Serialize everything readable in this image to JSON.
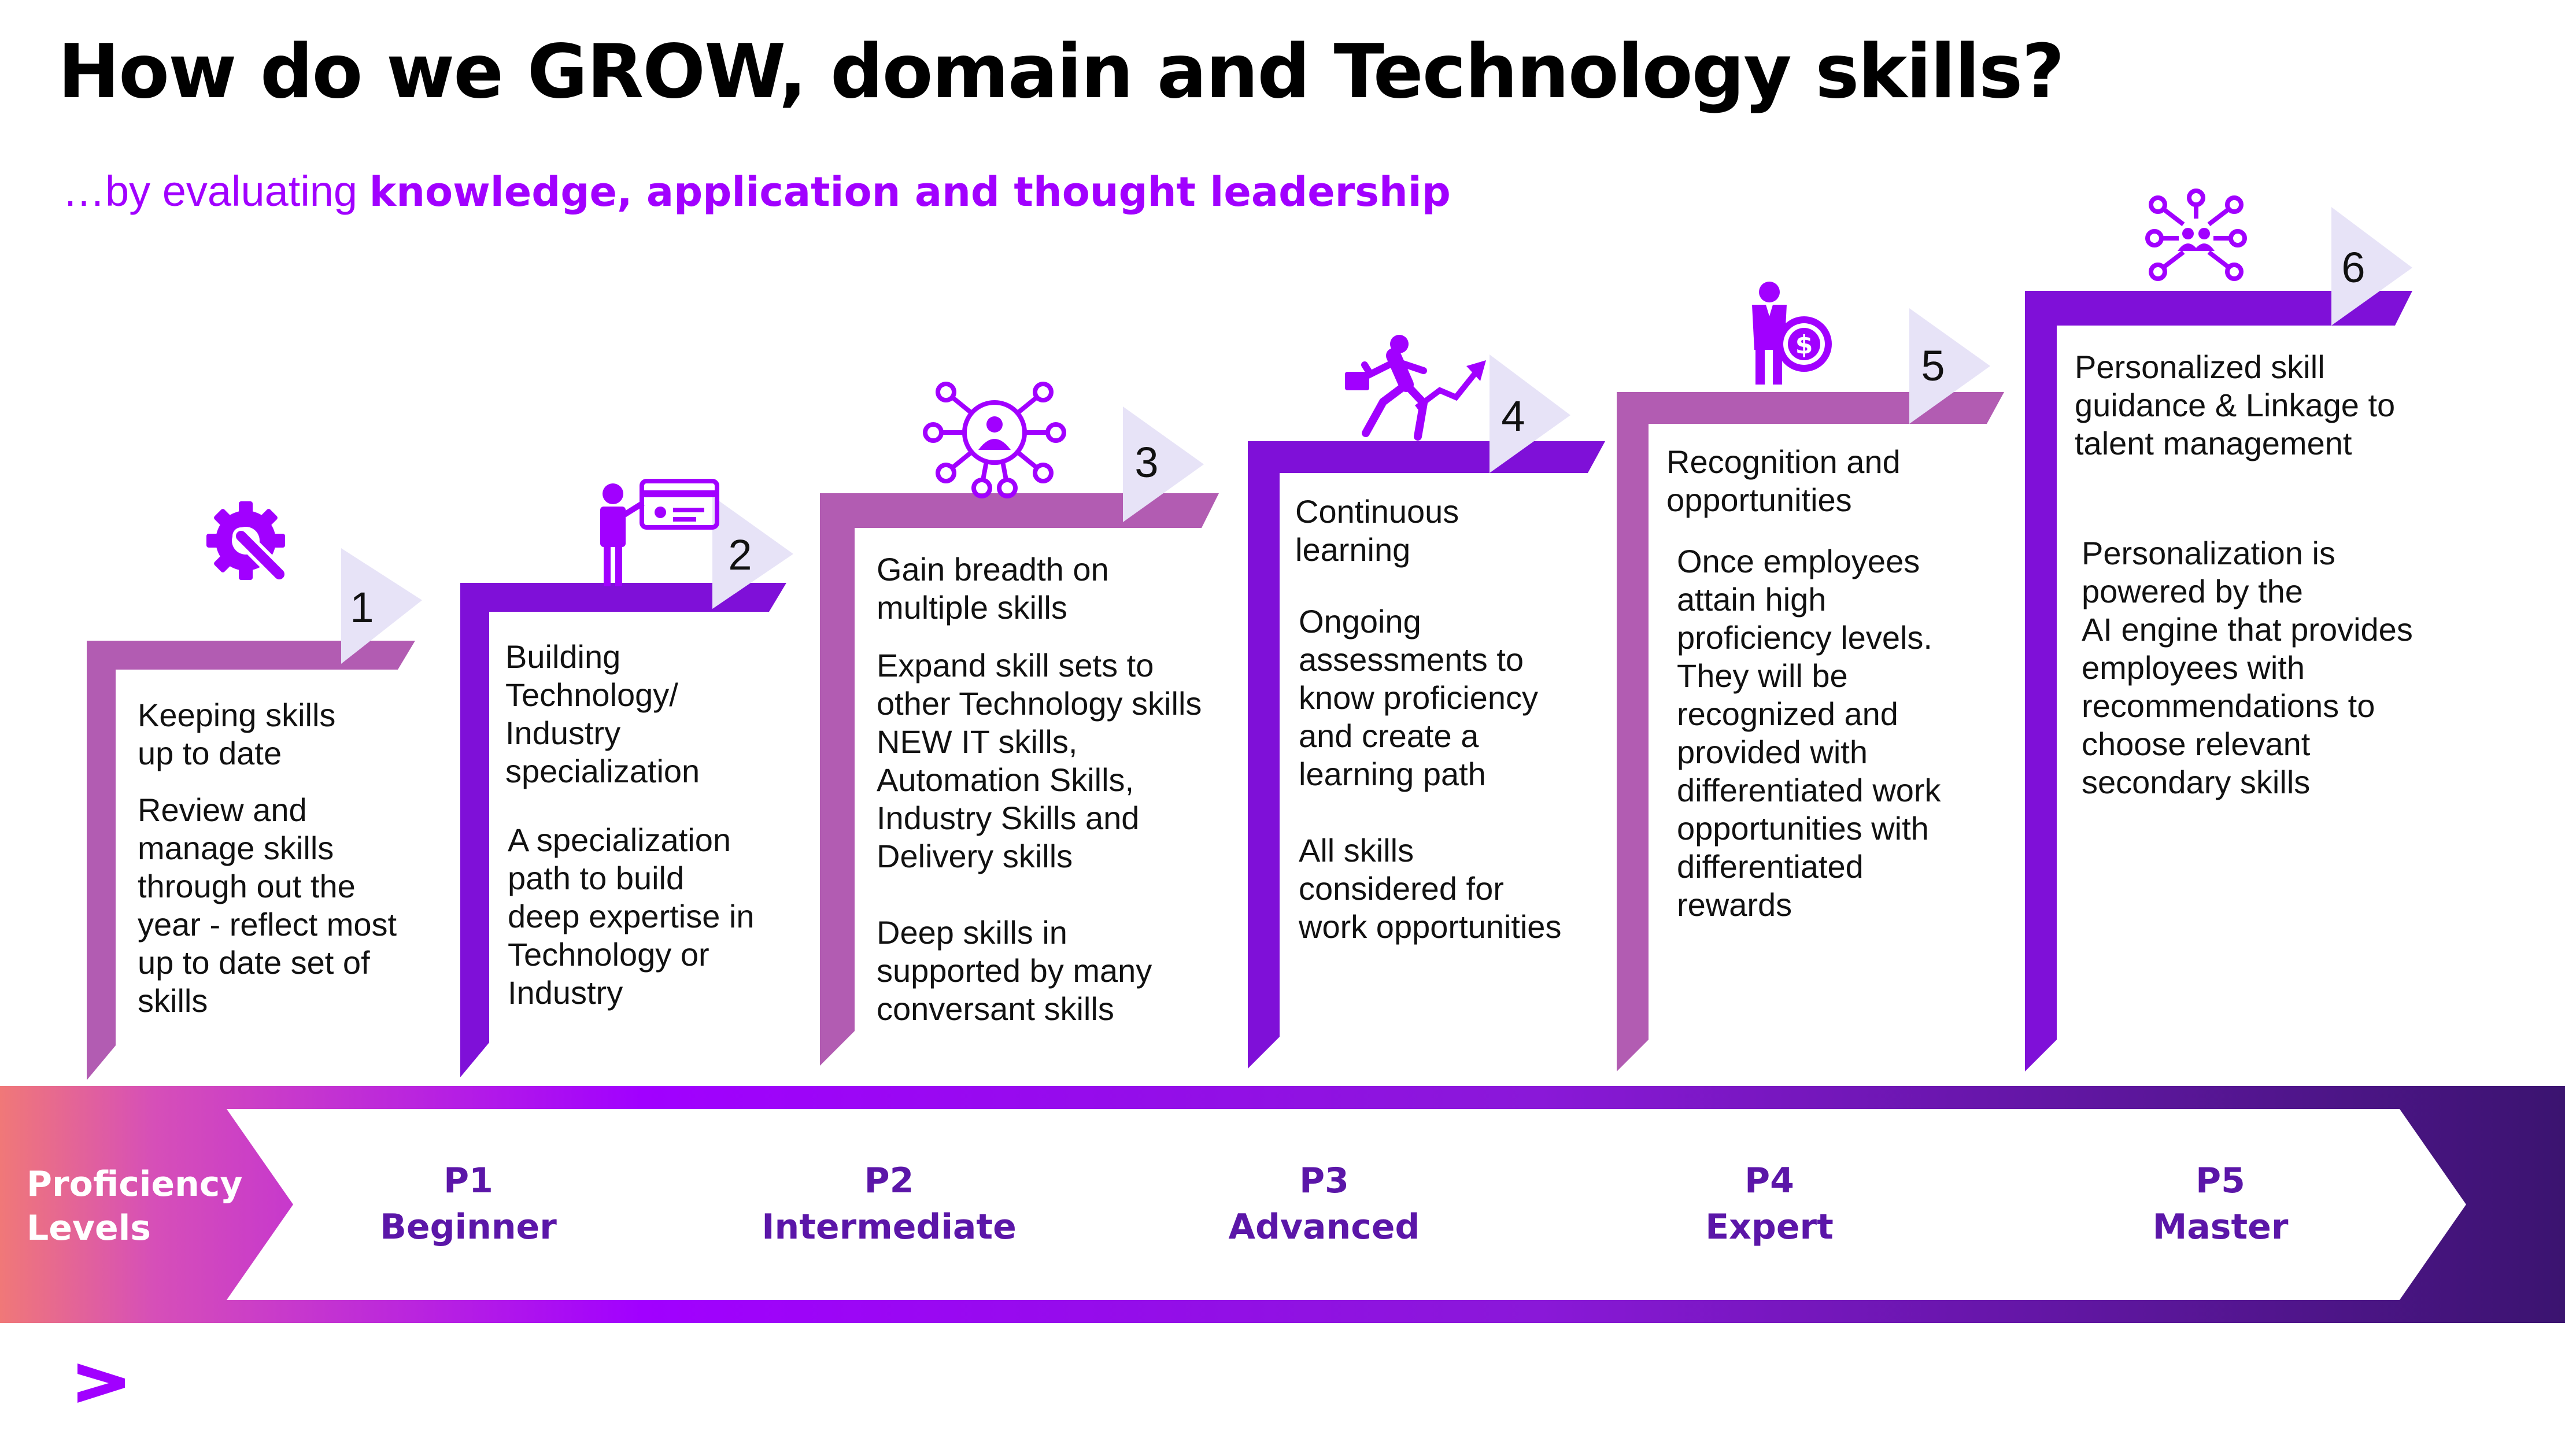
{
  "title": "How do we GROW, domain and Technology skills?",
  "subtitle": {
    "prefix": "…by evaluating ",
    "emphasis": "knowledge, application and thought leadership"
  },
  "colors": {
    "purple_dark": "#7f10d8",
    "purple_light": "#b25cb2",
    "accent_violet": "#a100ff",
    "arrow_tab": "#e7e3f7",
    "level_text": "#5b16a8",
    "band_start": "#f07878",
    "band_mid": "#a100ff",
    "band_end": "#3b1470"
  },
  "steps": [
    {
      "number": "1",
      "icon": "gear-wrench-icon",
      "title": "Keeping skills\nup to date",
      "body": "Review and\nmanage  skills\nthrough out the\nyear - reflect most\nup to date set of\nskills"
    },
    {
      "number": "2",
      "icon": "person-card-icon",
      "title": "Building\nTechnology/\nIndustry\nspecialization",
      "body": "A specialization\npath  to build\ndeep expertise in\nTechnology or\nIndustry"
    },
    {
      "number": "3",
      "icon": "network-person-icon",
      "title": "Gain breadth on\nmultiple skills",
      "body": "Expand  skill sets to\nother Technology skills\nNEW IT skills,\nAutomation Skills,\nIndustry Skills and\nDelivery skills\n\nDeep skills in\nsupported by many\nconversant skills"
    },
    {
      "number": "4",
      "icon": "running-man-arrow-icon",
      "title": "Continuous\nlearning",
      "body": "Ongoing\nassessments to\nknow proficiency\nand create a\nlearning path\n\nAll skills\nconsidered for\nwork opportunities"
    },
    {
      "number": "5",
      "icon": "person-dollar-icon",
      "title": "Recognition and\nopportunities",
      "body": "Once employees\nattain high\nproficiency levels.\nThey will be\nrecognized and\nprovided with\ndifferentiated work\nopportunities with\ndifferentiated\nrewards"
    },
    {
      "number": "6",
      "icon": "network-users-icon",
      "title": "Personalized skill\nguidance & Linkage to\ntalent management",
      "body": "Personalization is\npowered by the\nAI engine that provides\nemployees with\nrecommendations to\nchoose relevant\nsecondary skills"
    }
  ],
  "proficiency": {
    "label_line1": "Proficiency",
    "label_line2": "Levels",
    "levels": [
      {
        "code": "P1",
        "name": "Beginner"
      },
      {
        "code": "P2",
        "name": "Intermediate"
      },
      {
        "code": "P3",
        "name": "Advanced"
      },
      {
        "code": "P4",
        "name": "Expert"
      },
      {
        "code": "P5",
        "name": "Master"
      }
    ]
  },
  "logo": "accenture-greater-than-logo"
}
